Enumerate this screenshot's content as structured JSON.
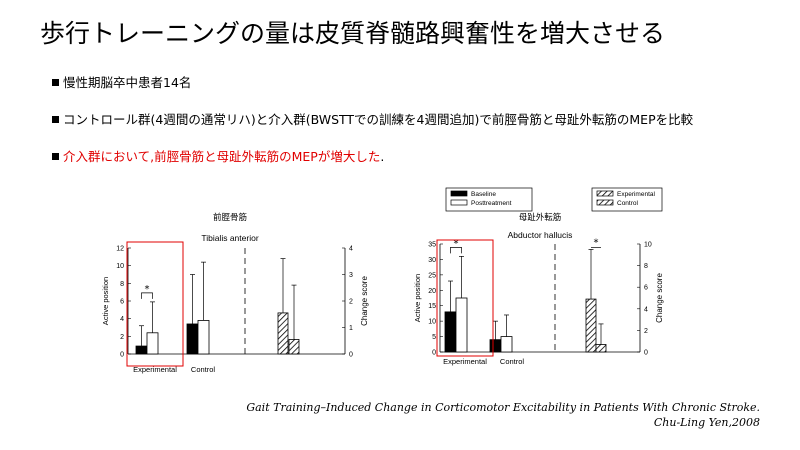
{
  "slide": {
    "title": "歩行トレーニングの量は皮質脊髄路興奮性を増大させる",
    "bullets": [
      {
        "text": "慢性期脳卒中患者14名",
        "color": "#000000"
      },
      {
        "text": "コントロール群(4週間の通常リハ)と介入群(BWSTTでの訓練を4週間追加)で前脛骨筋と母趾外転筋のMEPを比較",
        "color": "#000000"
      },
      {
        "text": "介入群において,前脛骨筋と母趾外転筋のMEPが増大した",
        "tail": ".",
        "color": "#e00000"
      }
    ],
    "citation_line1": "Gait Training–Induced Change in Corticomotor Excitability in Patients With Chronic Stroke.",
    "citation_line2": "Chu-Ling Yen,2008",
    "highlight_color": "#e00000"
  },
  "legends": {
    "left": [
      {
        "label": "Baseline",
        "fill": "solid"
      },
      {
        "label": "Posttreatment",
        "fill": "open"
      }
    ],
    "right": [
      {
        "label": "Experimental",
        "fill": "hatched"
      },
      {
        "label": "Control",
        "fill": "hatched"
      }
    ]
  },
  "chart_data": [
    {
      "type": "bar",
      "muscle_jp": "前脛骨筋",
      "title": "Tibialis anterior",
      "ylabel": "Active position",
      "y2label": "Change score",
      "ylim": [
        0,
        12
      ],
      "yticks": [
        0,
        2,
        4,
        6,
        8,
        10,
        12
      ],
      "y2lim": [
        0,
        4
      ],
      "y2ticks": [
        0,
        1,
        2,
        3,
        4
      ],
      "categories": [
        "Experimental",
        "Control"
      ],
      "series": [
        {
          "name": "Baseline",
          "values": [
            0.9,
            3.4
          ],
          "err": [
            2.3,
            5.6
          ]
        },
        {
          "name": "Posttreatment",
          "values": [
            2.4,
            3.8
          ],
          "err": [
            3.5,
            6.6
          ]
        }
      ],
      "change_series": [
        {
          "name": "Experimental",
          "value": 1.55,
          "err": 2.05
        },
        {
          "name": "Control",
          "value": 0.55,
          "err": 2.05
        }
      ],
      "significance": [
        {
          "category": "Experimental",
          "label": "*"
        }
      ]
    },
    {
      "type": "bar",
      "muscle_jp": "母趾外転筋",
      "title": "Abductor hallucis",
      "ylabel": "Active position",
      "y2label": "Change score",
      "ylim": [
        0,
        35
      ],
      "yticks": [
        0,
        5,
        10,
        15,
        20,
        25,
        30,
        35
      ],
      "y2lim": [
        0,
        10
      ],
      "y2ticks": [
        0,
        2,
        4,
        6,
        8,
        10
      ],
      "categories": [
        "Experimental",
        "Control"
      ],
      "series": [
        {
          "name": "Baseline",
          "values": [
            13,
            4
          ],
          "err": [
            10,
            6
          ]
        },
        {
          "name": "Posttreatment",
          "values": [
            17.5,
            5
          ],
          "err": [
            13.5,
            7
          ]
        }
      ],
      "change_series": [
        {
          "name": "Experimental",
          "value": 4.9,
          "err": 4.6
        },
        {
          "name": "Control",
          "value": 0.7,
          "err": 1.9
        }
      ],
      "significance": [
        {
          "category": "Experimental",
          "label": "*"
        },
        {
          "category": "change",
          "label": "*"
        }
      ]
    }
  ]
}
